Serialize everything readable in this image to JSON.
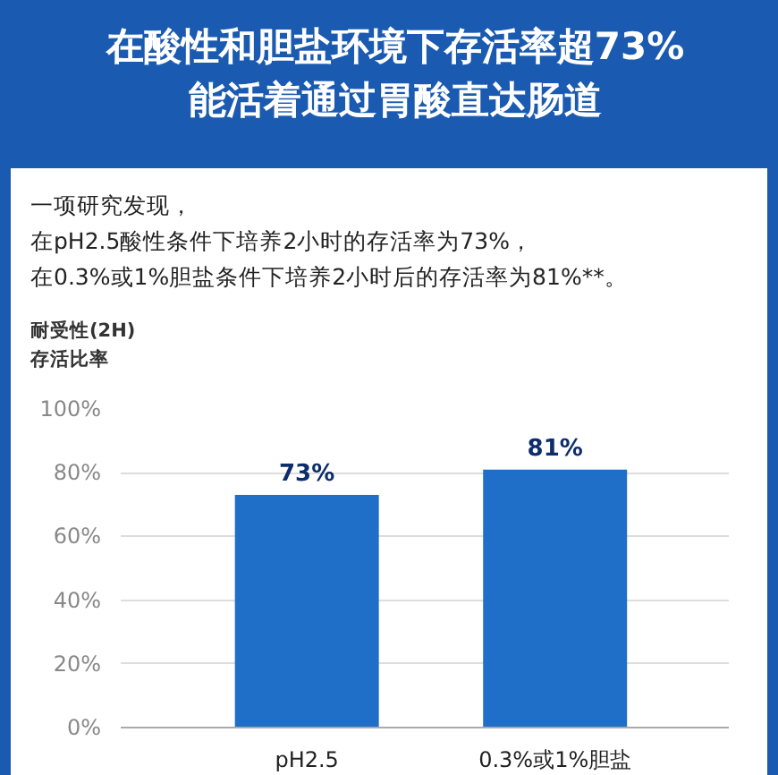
{
  "chart_data": {
    "type": "bar",
    "title": "在酸性和胆盐环境下存活率超73%\n能活着通过胃酸直达肠道",
    "annotations": [
      "一项研究发现，",
      "在pH2.5酸性条件下培养2小时的存活率为73%，",
      "在0.3%或1%胆盐条件下培养2小时后的存活率为81%**。"
    ],
    "ylabel": "耐受性(2H)\n存活比率",
    "categories": [
      "pH2.5",
      "0.3%或1%胆盐"
    ],
    "values": [
      73,
      81
    ],
    "color": "#1f6fc8",
    "ylim": [
      0,
      100
    ],
    "yticks": [
      {
        "value": 0,
        "label": "0%"
      },
      {
        "value": 20,
        "label": "20%"
      },
      {
        "value": 40,
        "label": "40%"
      },
      {
        "value": 60,
        "label": "60%"
      },
      {
        "value": 80,
        "label": "80%"
      },
      {
        "value": 100,
        "label": "100%"
      }
    ],
    "grid": "y",
    "value_labels": [
      "73%",
      "81%"
    ]
  }
}
